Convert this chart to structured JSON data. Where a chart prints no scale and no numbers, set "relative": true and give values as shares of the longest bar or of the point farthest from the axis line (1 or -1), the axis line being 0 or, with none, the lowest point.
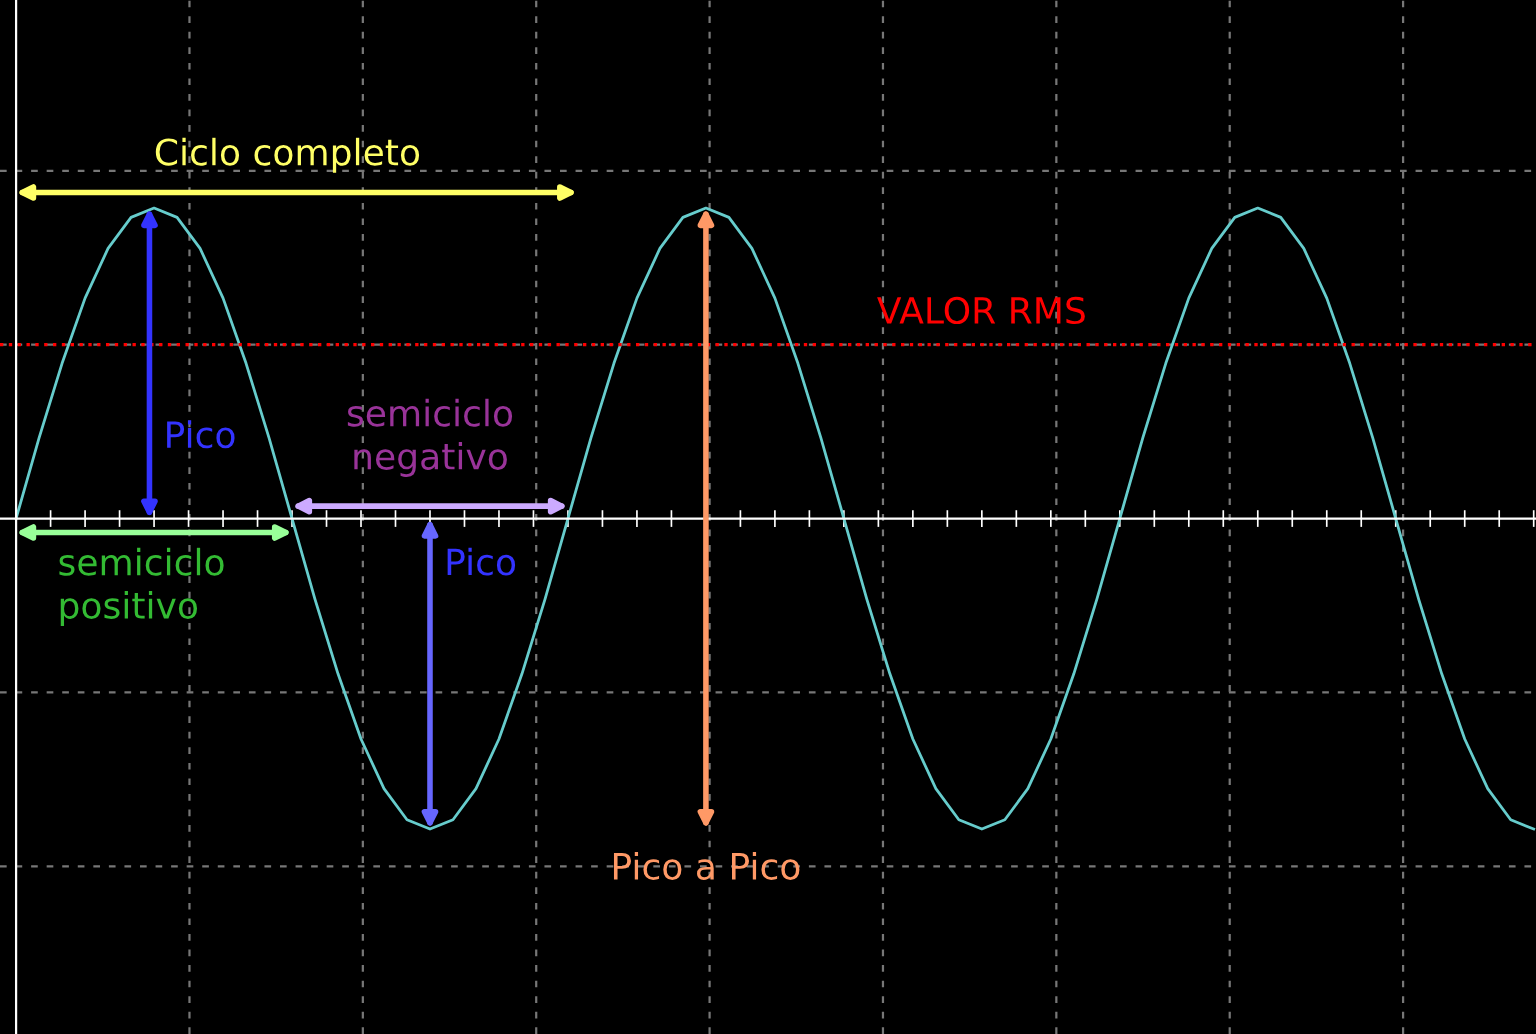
{
  "chart_data": {
    "type": "line",
    "relative": true,
    "grid": true,
    "tick_labels": false,
    "marker": "none",
    "line_style": "solid",
    "categories": [
      null,
      null,
      null,
      null,
      null,
      null,
      null,
      null,
      null,
      null,
      null,
      null,
      null,
      null,
      null,
      null,
      null,
      null,
      null,
      null,
      null,
      null,
      null,
      null,
      null,
      null,
      null,
      null,
      null,
      null,
      null,
      null,
      null,
      null,
      null,
      null,
      null,
      null,
      null,
      null,
      null,
      null,
      null,
      null,
      null,
      null,
      null,
      null,
      null,
      null,
      null,
      null,
      null,
      null,
      null,
      null,
      null,
      null,
      null,
      null,
      null,
      null,
      null,
      null,
      null,
      null,
      null
    ],
    "series": [
      {
        "color": "#66cccc",
        "values": [
          0,
          0.26,
          0.5,
          0.71,
          0.87,
          0.97,
          1,
          0.97,
          0.87,
          0.71,
          0.5,
          0.26,
          0,
          -0.26,
          -0.5,
          -0.71,
          -0.87,
          -0.97,
          -1,
          -0.97,
          -0.87,
          -0.71,
          -0.5,
          -0.26,
          0,
          0.26,
          0.5,
          0.71,
          0.87,
          0.97,
          1,
          0.97,
          0.87,
          0.71,
          0.5,
          0.26,
          0,
          -0.26,
          -0.5,
          -0.71,
          -0.87,
          -0.97,
          -1,
          -0.97,
          -0.87,
          -0.71,
          -0.5,
          -0.26,
          0,
          0.26,
          0.5,
          0.71,
          0.87,
          0.97,
          1,
          0.97,
          0.87,
          0.71,
          0.5,
          0.26,
          0,
          -0.26,
          -0.5,
          -0.71,
          -0.87,
          -0.97,
          -1
        ]
      }
    ],
    "ref_lines": [
      {
        "axis": "y",
        "value": 0.56,
        "label": "VALOR RMS",
        "color": "#ff0000",
        "line_style": "dotted"
      }
    ],
    "annotations": [
      "Ciclo completo",
      "Pico",
      "semiciclo negativo",
      "semiciclo positivo",
      "Pico",
      "Pico a Pico"
    ]
  }
}
